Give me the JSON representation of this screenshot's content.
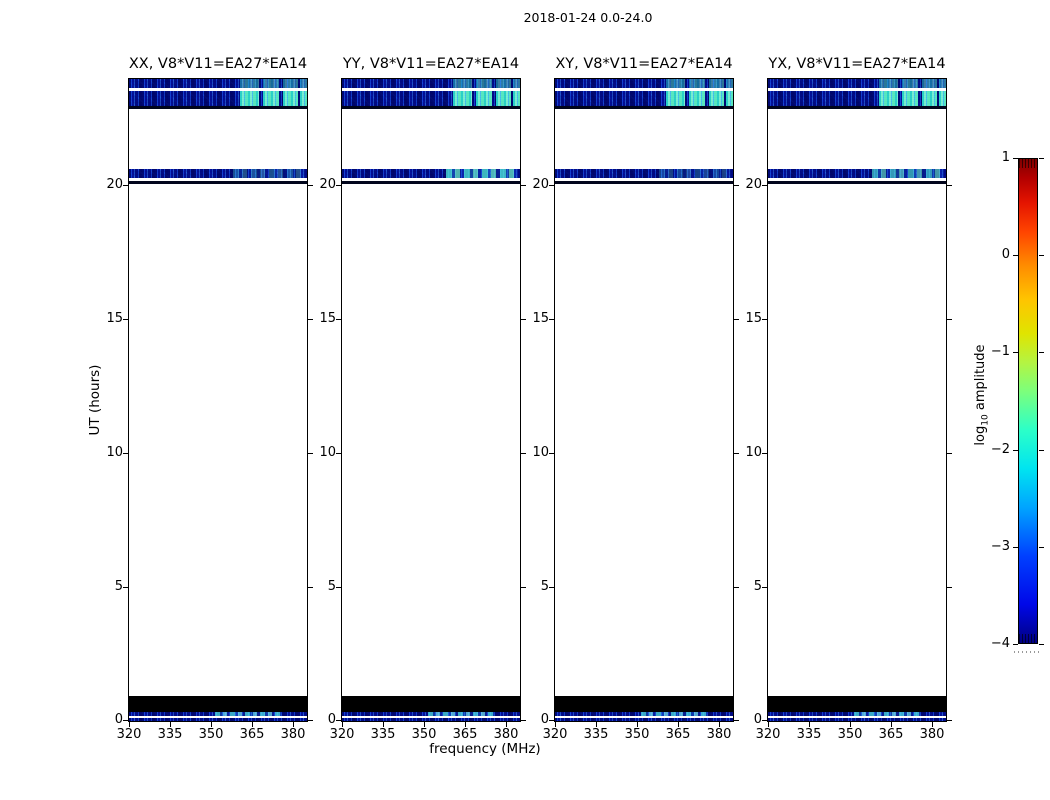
{
  "figure": {
    "title": "2018-01-24 0.0-24.0"
  },
  "axes": {
    "xlabel": "frequency (MHz)",
    "ylabel": "UT (hours)",
    "x_ticks": [
      "320",
      "335",
      "350",
      "365",
      "380"
    ],
    "y_ticks": [
      "20",
      "15",
      "10",
      "5",
      "0"
    ]
  },
  "panels": [
    {
      "pol": "XX",
      "title": "XX, V8*V11=EA27*EA14"
    },
    {
      "pol": "YY",
      "title": "YY, V8*V11=EA27*EA14"
    },
    {
      "pol": "XY",
      "title": "XY, V8*V11=EA27*EA14"
    },
    {
      "pol": "YX",
      "title": "YX, V8*V11=EA27*EA14"
    }
  ],
  "colorbar": {
    "label_log": "log",
    "label_sub": "10",
    "label_rest": " amplitude",
    "tick_labels": [
      "1",
      "0",
      "−1",
      "−2",
      "−3",
      "−4"
    ]
  },
  "chart_data": {
    "type": "heatmap",
    "title": "2018-01-24 0.0-24.0",
    "xlabel": "frequency (MHz)",
    "ylabel": "UT (hours)",
    "xlim": [
      320,
      385
    ],
    "ylim": [
      0,
      24
    ],
    "x_ticks": [
      320,
      335,
      350,
      365,
      380
    ],
    "y_ticks": [
      0,
      5,
      10,
      15,
      20
    ],
    "panels": [
      "XX, V8*V11=EA27*EA14",
      "YY, V8*V11=EA27*EA14",
      "XY, V8*V11=EA27*EA14",
      "YX, V8*V11=EA27*EA14"
    ],
    "colorbar": {
      "label": "log10 amplitude",
      "colormap": "jet",
      "range": [
        -4,
        1
      ],
      "ticks": [
        1,
        0,
        -1,
        -2,
        -3,
        -4
      ]
    },
    "features": [
      {
        "ut_range": [
          23.0,
          24.0
        ],
        "freq_range": [
          320,
          385
        ],
        "value_log10": [
          -3.2,
          -2.5
        ],
        "note": "noisy dark-blue band in all four panels; bright cyan/green blocks near 360-382 MHz (~ -2 to -1.5); thin white data gap near UT 23.55; dark edge at UT ~23.0"
      },
      {
        "ut_range": [
          20.3,
          20.65
        ],
        "freq_range": [
          320,
          385
        ],
        "value_log10": [
          -3.3,
          -2.8
        ],
        "note": "thin blue band; brighter cyan segments at 355-382 MHz, strongest in YY and YX; dark/flagged strip just below at UT 20.1-20.3"
      },
      {
        "ut_range": [
          0.35,
          0.95
        ],
        "freq_range": [
          320,
          385
        ],
        "value_log10": [
          -4,
          -4
        ],
        "note": "solid black band (at/below bottom of scale) in all panels"
      },
      {
        "ut_range": [
          0.0,
          0.35
        ],
        "freq_range": [
          320,
          385
        ],
        "value_log10": [
          -3.3,
          -2.2
        ],
        "note": "three thin noisy blue rows separated by white gaps; cyan patches near 352-378 MHz"
      },
      {
        "ut_range": [
          1.0,
          20.1
        ],
        "freq_range": [
          320,
          385
        ],
        "value_log10": null,
        "note": "white background: no data recorded"
      },
      {
        "ut_range": [
          20.7,
          22.9
        ],
        "freq_range": [
          320,
          385
        ],
        "value_log10": null,
        "note": "white background: no data recorded"
      }
    ]
  }
}
